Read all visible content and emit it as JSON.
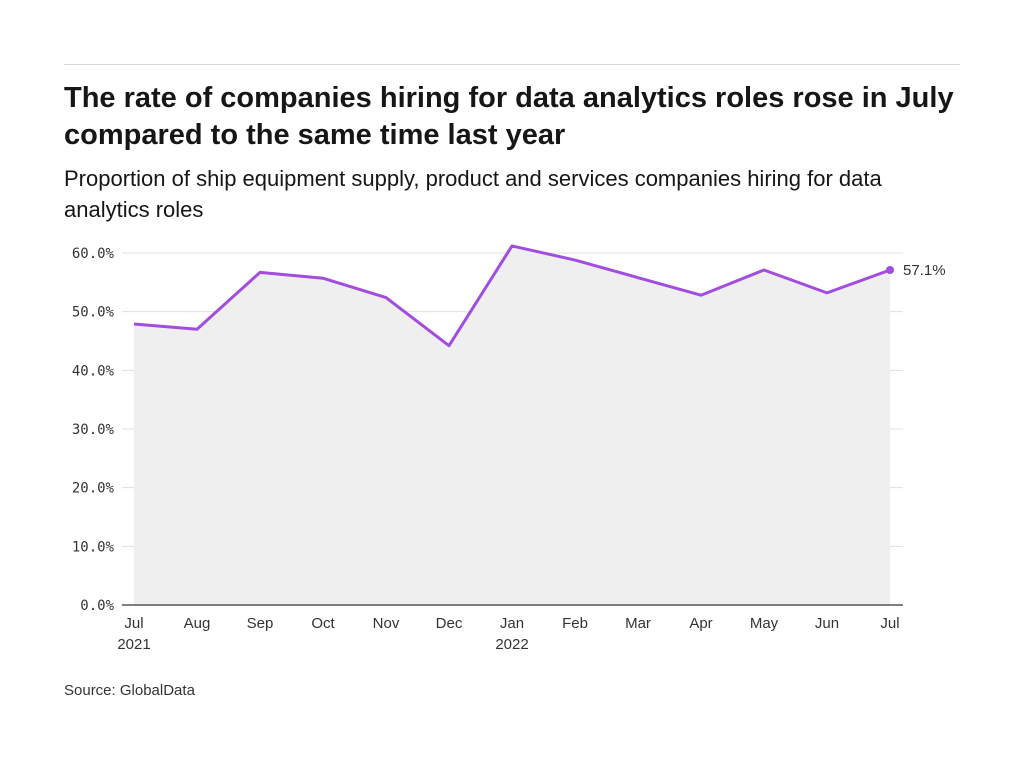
{
  "title": "The rate of companies hiring for data analytics roles rose in July compared to the same time last year",
  "subtitle": "Proportion of ship equipment supply, product and services companies hiring for data analytics roles",
  "source": "Source: GlobalData",
  "chart_data": {
    "type": "area",
    "categories": [
      "Jul",
      "Aug",
      "Sep",
      "Oct",
      "Nov",
      "Dec",
      "Jan",
      "Feb",
      "Mar",
      "Apr",
      "May",
      "Jun",
      "Jul"
    ],
    "year_labels": {
      "0": "2021",
      "6": "2022"
    },
    "values": [
      47.9,
      47.0,
      56.7,
      55.7,
      52.4,
      44.2,
      61.2,
      58.8,
      55.8,
      52.8,
      57.1,
      53.2,
      57.1
    ],
    "end_label": "57.1%",
    "yticks": [
      "0.0%",
      "10.0%",
      "20.0%",
      "30.0%",
      "40.0%",
      "50.0%",
      "60.0%"
    ],
    "ylim": [
      0,
      60
    ],
    "xlabel": "",
    "ylabel": "",
    "grid": true,
    "line_color": "#a14de0",
    "fill_color": "#efefef"
  }
}
